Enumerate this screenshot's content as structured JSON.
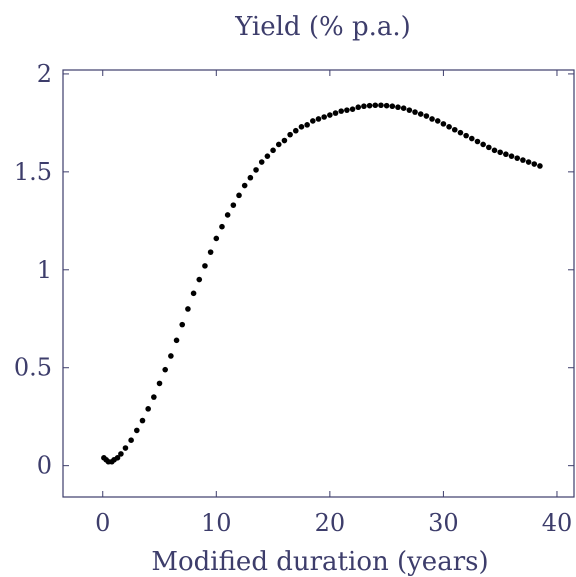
{
  "chart_data": {
    "type": "scatter",
    "title": "Yield (% p.a.)",
    "xlabel": "Modified duration (years)",
    "ylabel": "",
    "xlim": [
      -3.5,
      41.5
    ],
    "ylim": [
      -0.16,
      2.02
    ],
    "xticks": [
      0,
      10,
      20,
      30,
      40
    ],
    "xtick_labels": [
      "0",
      "10",
      "20",
      "30",
      "40"
    ],
    "yticks": [
      0,
      0.5,
      1,
      1.5,
      2
    ],
    "ytick_labels": [
      "0",
      "0.5",
      "1",
      "1.5",
      "2"
    ],
    "grid": false,
    "colors": {
      "axis": "#3d3d6b",
      "points": "#000000",
      "text": "#3d3d6b"
    },
    "series": [
      {
        "points": [
          [
            0.1,
            0.04
          ],
          [
            0.3,
            0.03
          ],
          [
            0.5,
            0.02
          ],
          [
            0.8,
            0.02
          ],
          [
            1.0,
            0.03
          ],
          [
            1.3,
            0.04
          ],
          [
            1.6,
            0.06
          ],
          [
            2.0,
            0.09
          ],
          [
            2.5,
            0.13
          ],
          [
            3.0,
            0.18
          ],
          [
            3.5,
            0.23
          ],
          [
            4.0,
            0.29
          ],
          [
            4.5,
            0.35
          ],
          [
            5.0,
            0.42
          ],
          [
            5.5,
            0.49
          ],
          [
            6.0,
            0.56
          ],
          [
            6.5,
            0.64
          ],
          [
            7.0,
            0.72
          ],
          [
            7.5,
            0.8
          ],
          [
            8.0,
            0.88
          ],
          [
            8.5,
            0.95
          ],
          [
            9.0,
            1.02
          ],
          [
            9.5,
            1.09
          ],
          [
            10.0,
            1.16
          ],
          [
            10.5,
            1.22
          ],
          [
            11.0,
            1.28
          ],
          [
            11.5,
            1.33
          ],
          [
            12.0,
            1.38
          ],
          [
            12.5,
            1.43
          ],
          [
            13.0,
            1.47
          ],
          [
            13.5,
            1.51
          ],
          [
            14.0,
            1.55
          ],
          [
            14.5,
            1.58
          ],
          [
            15.0,
            1.61
          ],
          [
            15.5,
            1.64
          ],
          [
            16.0,
            1.66
          ],
          [
            16.5,
            1.69
          ],
          [
            17.0,
            1.71
          ],
          [
            17.5,
            1.73
          ],
          [
            18.0,
            1.74
          ],
          [
            18.5,
            1.76
          ],
          [
            19.0,
            1.77
          ],
          [
            19.5,
            1.78
          ],
          [
            20.0,
            1.79
          ],
          [
            20.5,
            1.8
          ],
          [
            21.0,
            1.81
          ],
          [
            21.5,
            1.815
          ],
          [
            22.0,
            1.82
          ],
          [
            22.5,
            1.83
          ],
          [
            23.0,
            1.835
          ],
          [
            23.5,
            1.838
          ],
          [
            24.0,
            1.84
          ],
          [
            24.5,
            1.84
          ],
          [
            25.0,
            1.838
          ],
          [
            25.5,
            1.835
          ],
          [
            26.0,
            1.83
          ],
          [
            26.5,
            1.825
          ],
          [
            27.0,
            1.815
          ],
          [
            27.5,
            1.805
          ],
          [
            28.0,
            1.795
          ],
          [
            28.5,
            1.785
          ],
          [
            29.0,
            1.77
          ],
          [
            29.5,
            1.76
          ],
          [
            30.0,
            1.745
          ],
          [
            30.5,
            1.73
          ],
          [
            31.0,
            1.715
          ],
          [
            31.5,
            1.7
          ],
          [
            32.0,
            1.685
          ],
          [
            32.5,
            1.67
          ],
          [
            33.0,
            1.655
          ],
          [
            33.5,
            1.64
          ],
          [
            34.0,
            1.625
          ],
          [
            34.5,
            1.61
          ],
          [
            35.0,
            1.6
          ],
          [
            35.5,
            1.59
          ],
          [
            36.0,
            1.58
          ],
          [
            36.5,
            1.57
          ],
          [
            37.0,
            1.56
          ],
          [
            37.5,
            1.55
          ],
          [
            38.0,
            1.54
          ],
          [
            38.5,
            1.53
          ]
        ]
      }
    ]
  }
}
